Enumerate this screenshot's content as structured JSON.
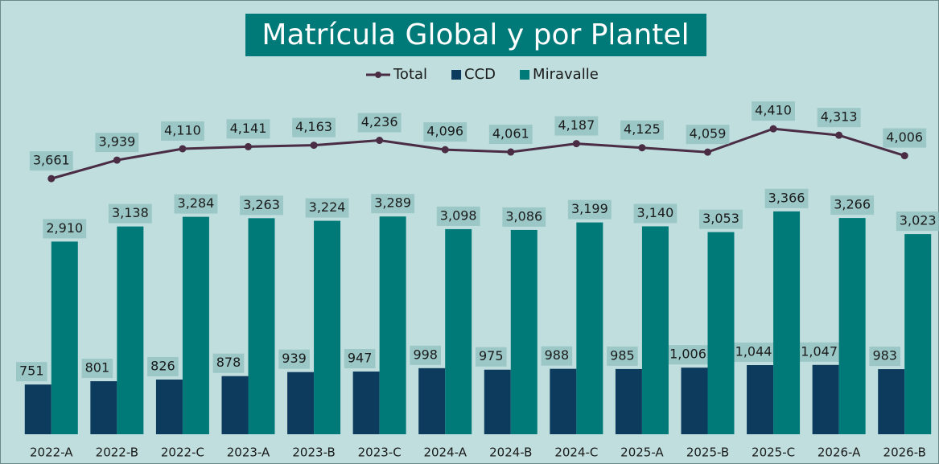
{
  "chart_data": {
    "type": "bar",
    "title": "Matrícula Global y por Plantel",
    "categories": [
      "2022-A",
      "2022-B",
      "2022-C",
      "2023-A",
      "2023-B",
      "2023-C",
      "2024-A",
      "2024-B",
      "2024-C",
      "2025-A",
      "2025-B",
      "2025-C",
      "2026-A",
      "2026-B"
    ],
    "series": [
      {
        "name": "Total",
        "type": "line",
        "axis": "y2",
        "color": "#4a2c45",
        "values": [
          3661,
          3939,
          4110,
          4141,
          4163,
          4236,
          4096,
          4061,
          4187,
          4125,
          4059,
          4410,
          4313,
          4006
        ],
        "value_labels": [
          "3,661",
          "3,939",
          "4,110",
          "4,141",
          "4,163",
          "4,236",
          "4,096",
          "4,061",
          "4,187",
          "4,125",
          "4,059",
          "4,410",
          "4,313",
          "4,006"
        ]
      },
      {
        "name": "CCD",
        "type": "bar",
        "color": "#0d3b5e",
        "values": [
          751,
          801,
          826,
          878,
          939,
          947,
          998,
          975,
          988,
          985,
          1006,
          1044,
          1047,
          983
        ],
        "value_labels": [
          "751",
          "801",
          "826",
          "878",
          "939",
          "947",
          "998",
          "975",
          "988",
          "985",
          "1,006",
          "1,044",
          "1,047",
          "983"
        ]
      },
      {
        "name": "Miravalle",
        "type": "bar",
        "color": "#007a78",
        "values": [
          2910,
          3138,
          3284,
          3263,
          3224,
          3289,
          3098,
          3086,
          3199,
          3140,
          3053,
          3366,
          3266,
          3023
        ],
        "value_labels": [
          "2,910",
          "3,138",
          "3,284",
          "3,263",
          "3,224",
          "3,289",
          "3,098",
          "3,086",
          "3,199",
          "3,140",
          "3,053",
          "3,366",
          "3,266",
          "3,023"
        ]
      }
    ],
    "ylim": [
      0,
      5830
    ],
    "y2lim": [
      -180,
      5620
    ]
  }
}
